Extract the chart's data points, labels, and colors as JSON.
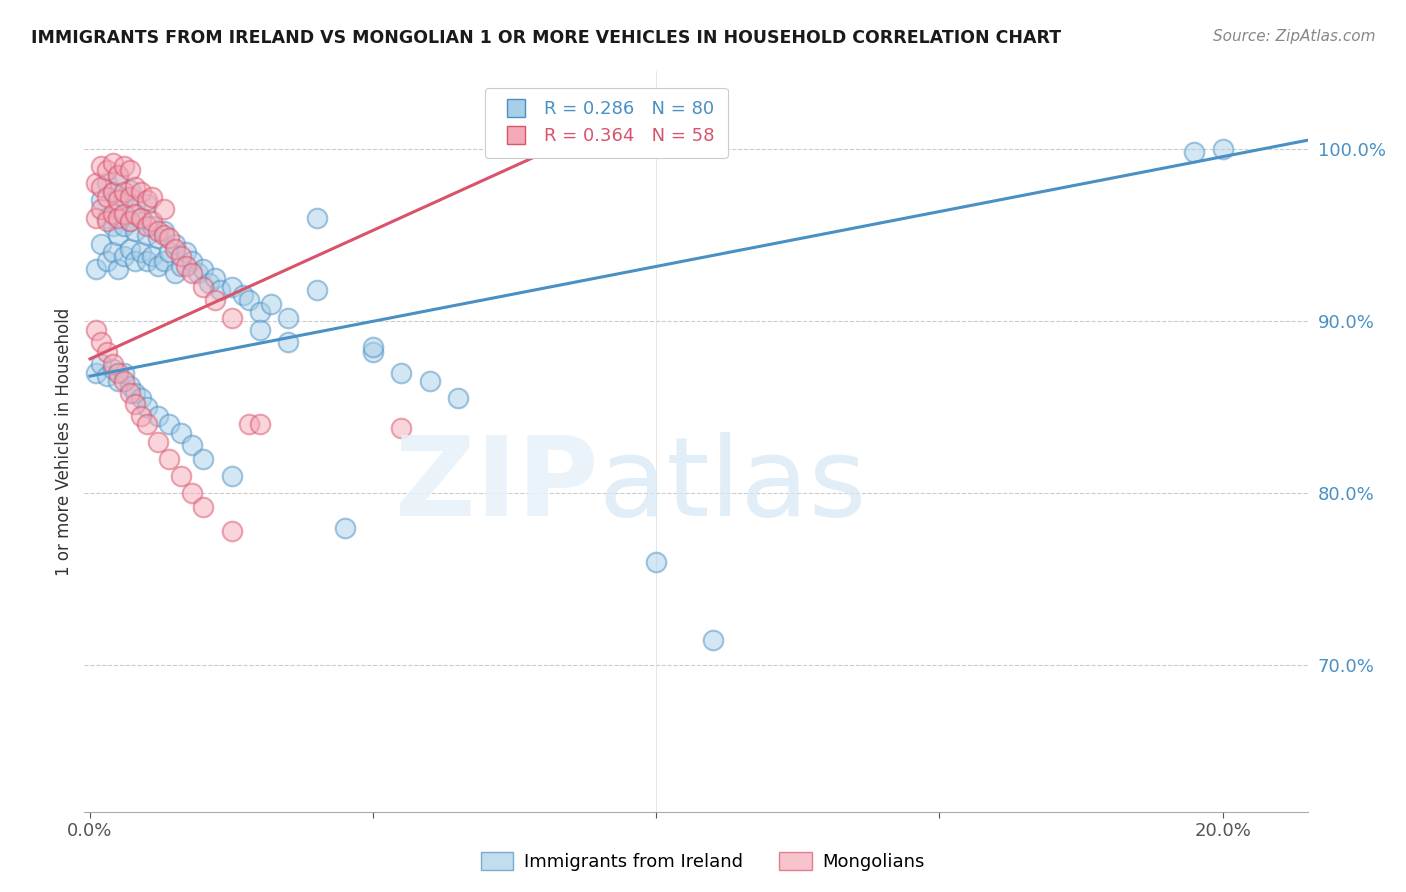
{
  "title": "IMMIGRANTS FROM IRELAND VS MONGOLIAN 1 OR MORE VEHICLES IN HOUSEHOLD CORRELATION CHART",
  "source": "Source: ZipAtlas.com",
  "ylabel": "1 or more Vehicles in Household",
  "ytick_labels": [
    "100.0%",
    "90.0%",
    "80.0%",
    "70.0%"
  ],
  "ytick_values": [
    1.0,
    0.9,
    0.8,
    0.7
  ],
  "ymin": 0.615,
  "ymax": 1.045,
  "xmin": -0.001,
  "xmax": 0.215,
  "blue_R": 0.286,
  "blue_N": 80,
  "pink_R": 0.364,
  "pink_N": 58,
  "blue_color": "#a8cfe8",
  "pink_color": "#f4aab9",
  "line_blue": "#4a90c4",
  "line_pink": "#d9536a",
  "legend_label_blue": "Immigrants from Ireland",
  "legend_label_pink": "Mongolians",
  "blue_x": [
    0.001,
    0.002,
    0.002,
    0.003,
    0.003,
    0.003,
    0.004,
    0.004,
    0.004,
    0.005,
    0.005,
    0.005,
    0.005,
    0.006,
    0.006,
    0.006,
    0.007,
    0.007,
    0.007,
    0.008,
    0.008,
    0.008,
    0.009,
    0.009,
    0.01,
    0.01,
    0.01,
    0.011,
    0.011,
    0.012,
    0.012,
    0.013,
    0.013,
    0.014,
    0.015,
    0.015,
    0.016,
    0.017,
    0.018,
    0.019,
    0.02,
    0.021,
    0.022,
    0.023,
    0.025,
    0.027,
    0.028,
    0.03,
    0.032,
    0.035,
    0.001,
    0.002,
    0.003,
    0.004,
    0.005,
    0.006,
    0.007,
    0.008,
    0.009,
    0.01,
    0.012,
    0.014,
    0.016,
    0.018,
    0.02,
    0.025,
    0.03,
    0.035,
    0.04,
    0.045,
    0.05,
    0.055,
    0.06,
    0.065,
    0.1,
    0.11,
    0.04,
    0.05,
    0.195,
    0.2
  ],
  "blue_y": [
    0.93,
    0.945,
    0.97,
    0.935,
    0.96,
    0.98,
    0.94,
    0.955,
    0.975,
    0.93,
    0.95,
    0.965,
    0.985,
    0.938,
    0.955,
    0.972,
    0.942,
    0.958,
    0.976,
    0.935,
    0.952,
    0.968,
    0.94,
    0.96,
    0.935,
    0.95,
    0.968,
    0.938,
    0.955,
    0.932,
    0.948,
    0.935,
    0.952,
    0.94,
    0.928,
    0.945,
    0.932,
    0.94,
    0.935,
    0.928,
    0.93,
    0.922,
    0.925,
    0.918,
    0.92,
    0.915,
    0.912,
    0.905,
    0.91,
    0.902,
    0.87,
    0.875,
    0.868,
    0.872,
    0.865,
    0.87,
    0.862,
    0.858,
    0.855,
    0.85,
    0.845,
    0.84,
    0.835,
    0.828,
    0.82,
    0.81,
    0.895,
    0.888,
    0.96,
    0.78,
    0.882,
    0.87,
    0.865,
    0.855,
    0.76,
    0.715,
    0.918,
    0.885,
    0.998,
    1.0
  ],
  "pink_x": [
    0.001,
    0.001,
    0.002,
    0.002,
    0.002,
    0.003,
    0.003,
    0.003,
    0.004,
    0.004,
    0.004,
    0.005,
    0.005,
    0.005,
    0.006,
    0.006,
    0.006,
    0.007,
    0.007,
    0.007,
    0.008,
    0.008,
    0.009,
    0.009,
    0.01,
    0.01,
    0.011,
    0.011,
    0.012,
    0.013,
    0.013,
    0.014,
    0.015,
    0.016,
    0.017,
    0.018,
    0.02,
    0.022,
    0.025,
    0.028,
    0.001,
    0.002,
    0.003,
    0.004,
    0.005,
    0.006,
    0.007,
    0.008,
    0.009,
    0.01,
    0.012,
    0.014,
    0.016,
    0.018,
    0.02,
    0.025,
    0.03,
    0.055
  ],
  "pink_y": [
    0.96,
    0.98,
    0.965,
    0.978,
    0.99,
    0.958,
    0.972,
    0.988,
    0.962,
    0.975,
    0.992,
    0.96,
    0.97,
    0.985,
    0.962,
    0.975,
    0.99,
    0.958,
    0.972,
    0.988,
    0.962,
    0.978,
    0.96,
    0.975,
    0.955,
    0.97,
    0.958,
    0.972,
    0.952,
    0.95,
    0.965,
    0.948,
    0.942,
    0.938,
    0.932,
    0.928,
    0.92,
    0.912,
    0.902,
    0.84,
    0.895,
    0.888,
    0.882,
    0.875,
    0.87,
    0.865,
    0.858,
    0.852,
    0.845,
    0.84,
    0.83,
    0.82,
    0.81,
    0.8,
    0.792,
    0.778,
    0.84,
    0.838
  ],
  "blue_line_x": [
    0.0,
    0.215
  ],
  "blue_line_y": [
    0.868,
    1.005
  ],
  "pink_line_x": [
    0.0,
    0.085
  ],
  "pink_line_y": [
    0.878,
    1.005
  ]
}
